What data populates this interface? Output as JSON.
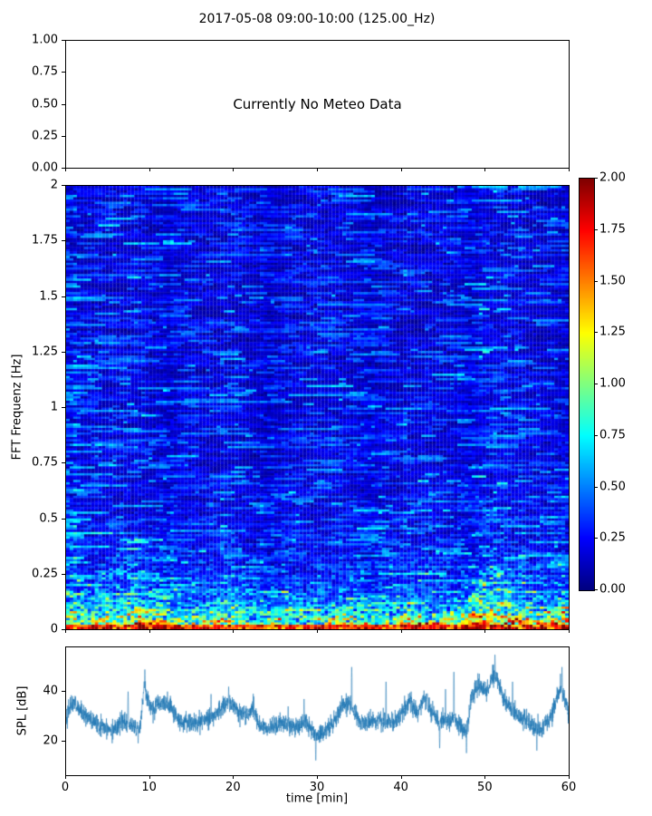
{
  "figure": {
    "title": "2017-05-08 09:00-10:00 (125.00_Hz)",
    "background": "#ffffff"
  },
  "meteo": {
    "annotation": "Currently No Meteo Data"
  },
  "colors": {
    "trace": "#1f77b4",
    "axis": "#000000",
    "colormap_stops_bottom_to_top": [
      "#000080",
      "#0000ff",
      "#00ffff",
      "#ffff00",
      "#ff0000",
      "#800000"
    ]
  },
  "chart_data": [
    {
      "id": "meteo-panel",
      "type": "line",
      "annotation": "Currently No Meteo Data",
      "xlim": [
        0,
        60
      ],
      "ylim": [
        0,
        1
      ],
      "yticks": [
        {
          "v": 0.0,
          "label": "0.00"
        },
        {
          "v": 0.25,
          "label": "0.25"
        },
        {
          "v": 0.5,
          "label": "0.50"
        },
        {
          "v": 0.75,
          "label": "0.75"
        },
        {
          "v": 1.0,
          "label": "1.00"
        }
      ],
      "xticks_unlabeled": [
        0,
        10,
        20,
        30,
        40,
        50,
        60
      ],
      "series": []
    },
    {
      "id": "spectrogram",
      "type": "heatmap",
      "ylabel": "FFT Frequenz [Hz]",
      "xlim": [
        0,
        60
      ],
      "ylim": [
        0,
        2
      ],
      "clim": [
        0,
        2
      ],
      "colormap": "jet",
      "yticks": [
        {
          "v": 0,
          "label": "0"
        },
        {
          "v": 0.25,
          "label": "0.25"
        },
        {
          "v": 0.5,
          "label": "0.5"
        },
        {
          "v": 0.75,
          "label": "0.75"
        },
        {
          "v": 1,
          "label": "1"
        },
        {
          "v": 1.25,
          "label": "1.25"
        },
        {
          "v": 1.5,
          "label": "1.5"
        },
        {
          "v": 1.75,
          "label": "1.75"
        },
        {
          "v": 2,
          "label": "2"
        }
      ],
      "xticks_unlabeled": [
        0,
        10,
        20,
        30,
        40,
        50,
        60
      ],
      "colorbar_ticks": [
        {
          "v": 0.0,
          "label": "0.00"
        },
        {
          "v": 0.25,
          "label": "0.25"
        },
        {
          "v": 0.5,
          "label": "0.50"
        },
        {
          "v": 0.75,
          "label": "0.75"
        },
        {
          "v": 1.0,
          "label": "1.00"
        },
        {
          "v": 1.25,
          "label": "1.25"
        },
        {
          "v": 1.5,
          "label": "1.50"
        },
        {
          "v": 1.75,
          "label": "1.75"
        },
        {
          "v": 2.0,
          "label": "2.00"
        }
      ],
      "generation": {
        "seed": 7,
        "cols": 140,
        "rows": 196,
        "background_base": 0.07,
        "background_var": 0.55,
        "segment_change_p": 0.22,
        "cell_noise": 0.06,
        "mid_tau_hz": 0.32,
        "mid_scale": 0.3,
        "low_tau_hz": 0.09,
        "low_scale": 1.5,
        "bottom_rows_min": 1.3,
        "activity_keypoints": [
          [
            0,
            1.05
          ],
          [
            2,
            0.85
          ],
          [
            4,
            1.1
          ],
          [
            6,
            1.15
          ],
          [
            8,
            1.25
          ],
          [
            10,
            1.15
          ],
          [
            12,
            1.0
          ],
          [
            14,
            0.8
          ],
          [
            16,
            0.8
          ],
          [
            18,
            1.0
          ],
          [
            19,
            1.1
          ],
          [
            21,
            0.9
          ],
          [
            23,
            0.75
          ],
          [
            25,
            0.75
          ],
          [
            27,
            0.8
          ],
          [
            29,
            0.7
          ],
          [
            31,
            0.75
          ],
          [
            33,
            0.95
          ],
          [
            35,
            0.85
          ],
          [
            37,
            0.85
          ],
          [
            39,
            0.85
          ],
          [
            41,
            0.95
          ],
          [
            43,
            0.9
          ],
          [
            45,
            0.85
          ],
          [
            47,
            0.9
          ],
          [
            48,
            1.2
          ],
          [
            50,
            1.45
          ],
          [
            52,
            1.4
          ],
          [
            54,
            1.15
          ],
          [
            56,
            0.95
          ],
          [
            58,
            1.05
          ],
          [
            60,
            1.3
          ]
        ]
      }
    },
    {
      "id": "spl",
      "type": "line",
      "ylabel": "SPL [dB]",
      "xlabel": "time [min]",
      "xlim": [
        0,
        60
      ],
      "ylim": [
        6,
        58
      ],
      "line_color": "#1f77b4",
      "yticks": [
        {
          "v": 20,
          "label": "20"
        },
        {
          "v": 40,
          "label": "40"
        }
      ],
      "xticks": [
        {
          "v": 0,
          "label": "0"
        },
        {
          "v": 10,
          "label": "10"
        },
        {
          "v": 20,
          "label": "20"
        },
        {
          "v": 30,
          "label": "30"
        },
        {
          "v": 40,
          "label": "40"
        },
        {
          "v": 50,
          "label": "50"
        },
        {
          "v": 60,
          "label": "60"
        }
      ],
      "samples": 3600,
      "noise_sigma": 1.9,
      "seed": 42,
      "envelope_keypoints": [
        [
          0,
          30
        ],
        [
          0.8,
          36
        ],
        [
          2,
          31
        ],
        [
          3,
          28
        ],
        [
          4.5,
          25.5
        ],
        [
          6,
          25
        ],
        [
          7,
          28
        ],
        [
          8,
          26
        ],
        [
          8.8,
          24
        ],
        [
          9.3,
          42
        ],
        [
          9.8,
          36
        ],
        [
          10.5,
          32
        ],
        [
          11,
          35
        ],
        [
          11.8,
          35
        ],
        [
          12.5,
          33
        ],
        [
          13.5,
          28
        ],
        [
          15,
          27
        ],
        [
          16,
          27.5
        ],
        [
          17,
          29
        ],
        [
          18,
          31
        ],
        [
          19,
          35
        ],
        [
          19.5,
          36
        ],
        [
          20.5,
          32
        ],
        [
          21.5,
          30
        ],
        [
          22.3,
          33
        ],
        [
          23,
          27
        ],
        [
          24,
          25
        ],
        [
          25,
          26
        ],
        [
          26,
          27
        ],
        [
          27,
          26
        ],
        [
          28,
          26
        ],
        [
          28.5,
          29
        ],
        [
          29.5,
          23
        ],
        [
          30,
          22
        ],
        [
          31,
          24
        ],
        [
          32,
          28
        ],
        [
          33,
          34
        ],
        [
          33.8,
          36
        ],
        [
          34.5,
          31
        ],
        [
          35,
          28
        ],
        [
          36,
          27
        ],
        [
          37,
          28
        ],
        [
          38,
          28
        ],
        [
          39,
          27
        ],
        [
          40,
          31
        ],
        [
          41,
          36
        ],
        [
          42,
          31
        ],
        [
          42.8,
          38
        ],
        [
          43.5,
          33
        ],
        [
          44.5,
          28
        ],
        [
          45.5,
          28
        ],
        [
          46.3,
          29
        ],
        [
          47,
          26
        ],
        [
          47.8,
          23
        ],
        [
          48.3,
          36
        ],
        [
          49,
          43
        ],
        [
          49.8,
          41
        ],
        [
          50.3,
          40
        ],
        [
          51,
          47
        ],
        [
          51.5,
          45
        ],
        [
          52,
          39
        ],
        [
          53,
          33
        ],
        [
          54,
          30
        ],
        [
          55,
          28
        ],
        [
          56,
          25
        ],
        [
          57,
          26
        ],
        [
          58,
          31
        ],
        [
          59,
          42
        ],
        [
          59.5,
          38
        ],
        [
          60,
          31
        ]
      ],
      "spikes_up": [
        [
          7.4,
          40
        ],
        [
          9.4,
          49
        ],
        [
          12.1,
          40
        ],
        [
          17.3,
          39
        ],
        [
          19.4,
          42
        ],
        [
          22.4,
          38
        ],
        [
          26.5,
          34
        ],
        [
          28.4,
          37
        ],
        [
          34.1,
          50
        ],
        [
          38.2,
          44
        ],
        [
          41.2,
          40
        ],
        [
          45.3,
          41
        ],
        [
          46.3,
          48
        ],
        [
          51.2,
          55
        ],
        [
          53.3,
          44
        ],
        [
          59.2,
          50
        ]
      ],
      "spikes_down": [
        [
          5.5,
          19
        ],
        [
          8.6,
          19
        ],
        [
          29.8,
          12
        ],
        [
          44.6,
          17
        ],
        [
          47.8,
          15
        ],
        [
          56.2,
          16
        ]
      ]
    }
  ]
}
